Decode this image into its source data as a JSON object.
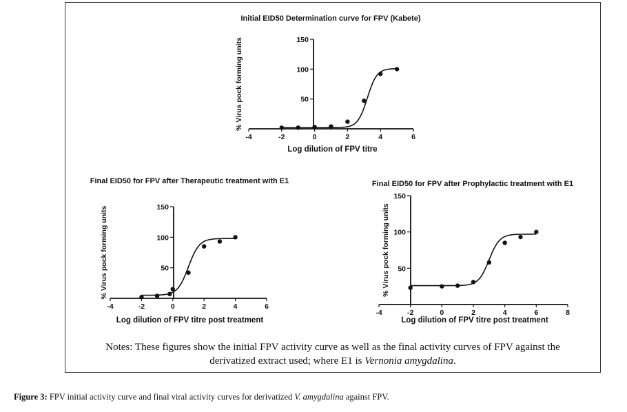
{
  "chart_data": [
    {
      "type": "scatter",
      "title": "Initial EID50 Determination curve for FPV (Kabete)",
      "xlabel": "Log dilution of FPV titre",
      "ylabel": "% Virus pock forming units",
      "xlim": [
        -4,
        6
      ],
      "ylim": [
        0,
        150
      ],
      "xticks": [
        -4,
        -2,
        0,
        2,
        4,
        6
      ],
      "yticks": [
        50,
        100,
        150
      ],
      "points": {
        "x": [
          -2,
          -1,
          0,
          1,
          2,
          3,
          4,
          5
        ],
        "y": [
          2,
          2,
          3,
          4,
          12,
          47,
          92,
          100
        ]
      },
      "fit": {
        "bottom": 2,
        "top": 101,
        "logEC50": 3.2,
        "hill": 1.5
      }
    },
    {
      "type": "scatter",
      "title": "Final EID50 for FPV after Therapeutic treatment with E1",
      "xlabel": "Log dilution of FPV titre post treatment",
      "ylabel": "% Virus pock forming units",
      "xlim": [
        -4,
        6
      ],
      "ylim": [
        0,
        150
      ],
      "xticks": [
        -4,
        -2,
        0,
        2,
        4,
        6
      ],
      "yticks": [
        50,
        100,
        150
      ],
      "points": {
        "x": [
          -2,
          -1,
          -0.2,
          0,
          1,
          2,
          3,
          4
        ],
        "y": [
          2,
          4,
          7,
          15,
          42,
          85,
          93,
          100
        ]
      },
      "fit": {
        "bottom": 5,
        "top": 98,
        "logEC50": 1.0,
        "hill": 1.25
      }
    },
    {
      "type": "scatter",
      "title": "Final EID50 for FPV after Prophylactic treatment with E1",
      "xlabel": "Log dilution of FPV titre post treatment",
      "ylabel": "% Virus pock forming units",
      "xlim": [
        -4,
        8
      ],
      "ylim": [
        0,
        150
      ],
      "xticks": [
        -4,
        -2,
        0,
        2,
        4,
        6,
        8
      ],
      "yticks": [
        50,
        100,
        150
      ],
      "points": {
        "x": [
          -2,
          0,
          1,
          2,
          3,
          4,
          5,
          6
        ],
        "y": [
          23,
          25,
          26,
          31,
          58,
          85,
          93,
          100
        ]
      },
      "fit": {
        "bottom": 26,
        "top": 97,
        "logEC50": 3.0,
        "hill": 1.3
      }
    }
  ],
  "notes": {
    "line1": "Notes: These figures show the initial FPV activity curve as well as the final activity curves of FPV against the",
    "line2_a": "derivatized extract used; where E1 is ",
    "line2_species": "Vernonia amygdalina",
    "line2_b": "."
  },
  "caption": {
    "label": "Figure 3:",
    "text_a": " FPV initial activity curve and final viral activity curves for derivatized ",
    "species": "V. amygdalina",
    "text_b": " against FPV."
  }
}
